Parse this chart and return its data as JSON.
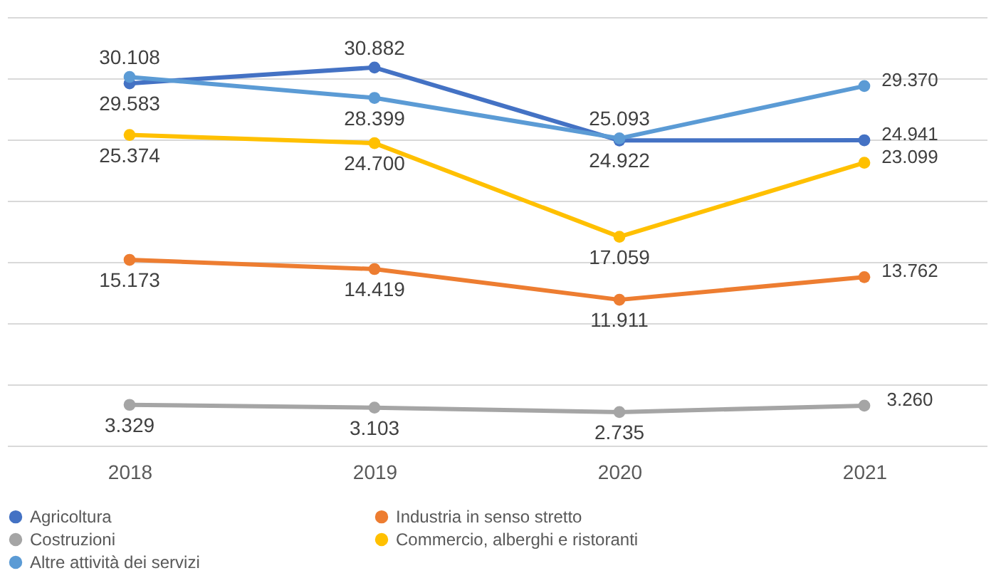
{
  "chart_data": {
    "type": "line",
    "categories": [
      "2018",
      "2019",
      "2020",
      "2021"
    ],
    "series": [
      {
        "name": "Agricoltura",
        "color": "#4472c4",
        "values": [
          29.583,
          30.882,
          24.922,
          24.941
        ],
        "value_labels": [
          "29.583",
          "30.882",
          "24.922",
          "24.941"
        ]
      },
      {
        "name": "Industria in senso stretto",
        "color": "#ed7d31",
        "values": [
          15.173,
          14.419,
          11.911,
          13.762
        ],
        "value_labels": [
          "15.173",
          "14.419",
          "11.911",
          "13.762"
        ]
      },
      {
        "name": "Costruzioni",
        "color": "#a5a5a5",
        "values": [
          3.329,
          3.103,
          2.735,
          3.26
        ],
        "value_labels": [
          "3.329",
          "3.103",
          "2.735",
          "3.260"
        ]
      },
      {
        "name": "Commercio, alberghi e ristoranti",
        "color": "#ffc000",
        "values": [
          25.374,
          24.7,
          17.059,
          23.099
        ],
        "value_labels": [
          "25.374",
          "24.700",
          "17.059",
          "23.099"
        ]
      },
      {
        "name": "Altre attività dei servizi",
        "color": "#5b9bd5",
        "values": [
          30.108,
          28.399,
          25.093,
          29.37
        ],
        "value_labels": [
          "30.108",
          "28.399",
          "25.093",
          "29.370"
        ]
      }
    ],
    "ylim": [
      0,
      35
    ],
    "yticks": [
      {
        "value": 0,
        "label": null
      },
      {
        "value": 5,
        "label": null
      },
      {
        "value": 10,
        "label": null
      },
      {
        "value": 15,
        "label": null
      },
      {
        "value": 20,
        "label": null
      },
      {
        "value": 25,
        "label": null
      },
      {
        "value": 30,
        "label": null
      },
      {
        "value": 35,
        "label": null
      }
    ],
    "tick_labels": "x",
    "grid": "y",
    "legend": "bottom",
    "marker": "circle",
    "line_style": "solid"
  }
}
